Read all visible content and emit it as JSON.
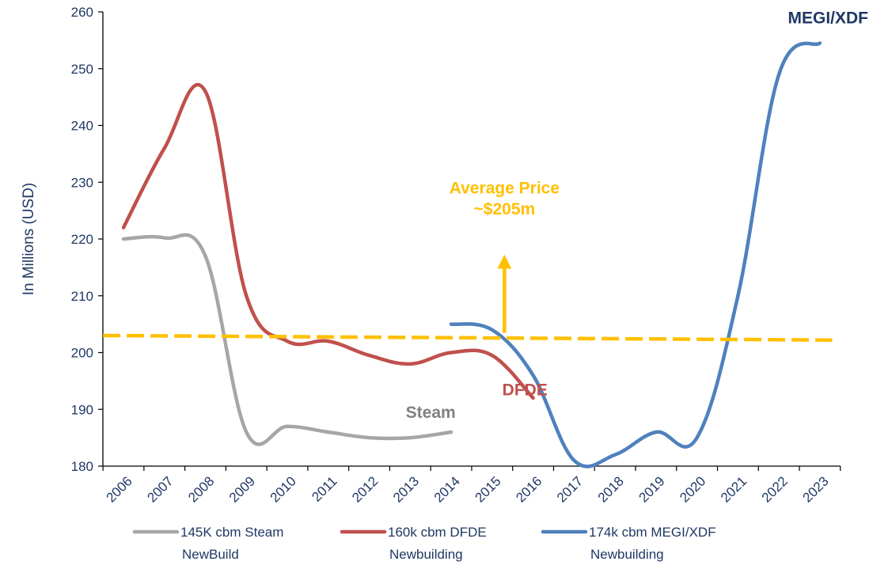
{
  "chart_data": {
    "type": "line",
    "title": "",
    "xlabel": "",
    "ylabel": "In Millions (USD)",
    "ylim": [
      180,
      260
    ],
    "yticks": [
      "180",
      "190",
      "200",
      "210",
      "220",
      "230",
      "240",
      "250",
      "260"
    ],
    "x": [
      "2006",
      "2007",
      "2008",
      "2009",
      "2010",
      "2011",
      "2012",
      "2013",
      "2014",
      "2015",
      "2016",
      "2017",
      "2018",
      "2019",
      "2020",
      "2021",
      "2022",
      "2023"
    ],
    "grid": false,
    "legend_position": "bottom",
    "series": [
      {
        "name": "145K cbm Steam NewBuild",
        "legend_lines": [
          "145K cbm Steam",
          "NewBuild"
        ],
        "color": "#a6a6a6",
        "points": [
          [
            2006,
            220
          ],
          [
            2007,
            220.2
          ],
          [
            2008,
            217
          ],
          [
            2009,
            186
          ],
          [
            2010,
            187
          ],
          [
            2011,
            186
          ],
          [
            2012,
            185
          ],
          [
            2013,
            185
          ],
          [
            2014,
            186
          ]
        ]
      },
      {
        "name": "160k cbm DFDE Newbuilding",
        "legend_lines": [
          "160k cbm DFDE",
          "Newbuilding"
        ],
        "color": "#c0504d",
        "points": [
          [
            2006,
            222
          ],
          [
            2007,
            236
          ],
          [
            2008,
            246
          ],
          [
            2009,
            210
          ],
          [
            2010,
            202
          ],
          [
            2011,
            202
          ],
          [
            2012,
            199.5
          ],
          [
            2013,
            198
          ],
          [
            2014,
            200
          ],
          [
            2015,
            199.5
          ],
          [
            2016,
            192
          ]
        ]
      },
      {
        "name": "174k cbm MEGI/XDF Newbuilding",
        "legend_lines": [
          "174k cbm MEGI/XDF",
          "Newbuilding"
        ],
        "color": "#4f81bd",
        "points": [
          [
            2014,
            205
          ],
          [
            2015,
            204
          ],
          [
            2016,
            196
          ],
          [
            2017,
            181
          ],
          [
            2018,
            182
          ],
          [
            2019,
            186
          ],
          [
            2020,
            185
          ],
          [
            2021,
            210
          ],
          [
            2022,
            249
          ],
          [
            2023,
            254.5
          ]
        ]
      }
    ],
    "reference_line": {
      "color": "#ffc000",
      "points": [
        [
          2005.5,
          203
        ],
        [
          2023.3,
          202.2
        ]
      ]
    },
    "arrow": {
      "color": "#ffc000",
      "from": [
        2015.3,
        203.5
      ],
      "to": [
        2015.3,
        216
      ]
    },
    "annotations": [
      {
        "text": "Steam",
        "x": 2013.5,
        "y": 188.5,
        "color": "#808080"
      },
      {
        "text": "DFDE",
        "x": 2015.8,
        "y": 192.5,
        "color": "#c0504d"
      },
      {
        "text": "MEGI/XDF",
        "x": 2023.2,
        "y": 258,
        "color": "#1f3864"
      },
      {
        "text": "Average Price",
        "x": 2015.3,
        "y": 228,
        "color": "#ffc000"
      },
      {
        "text": "~$205m",
        "x": 2015.3,
        "y": 224.3,
        "color": "#ffc000"
      }
    ]
  }
}
